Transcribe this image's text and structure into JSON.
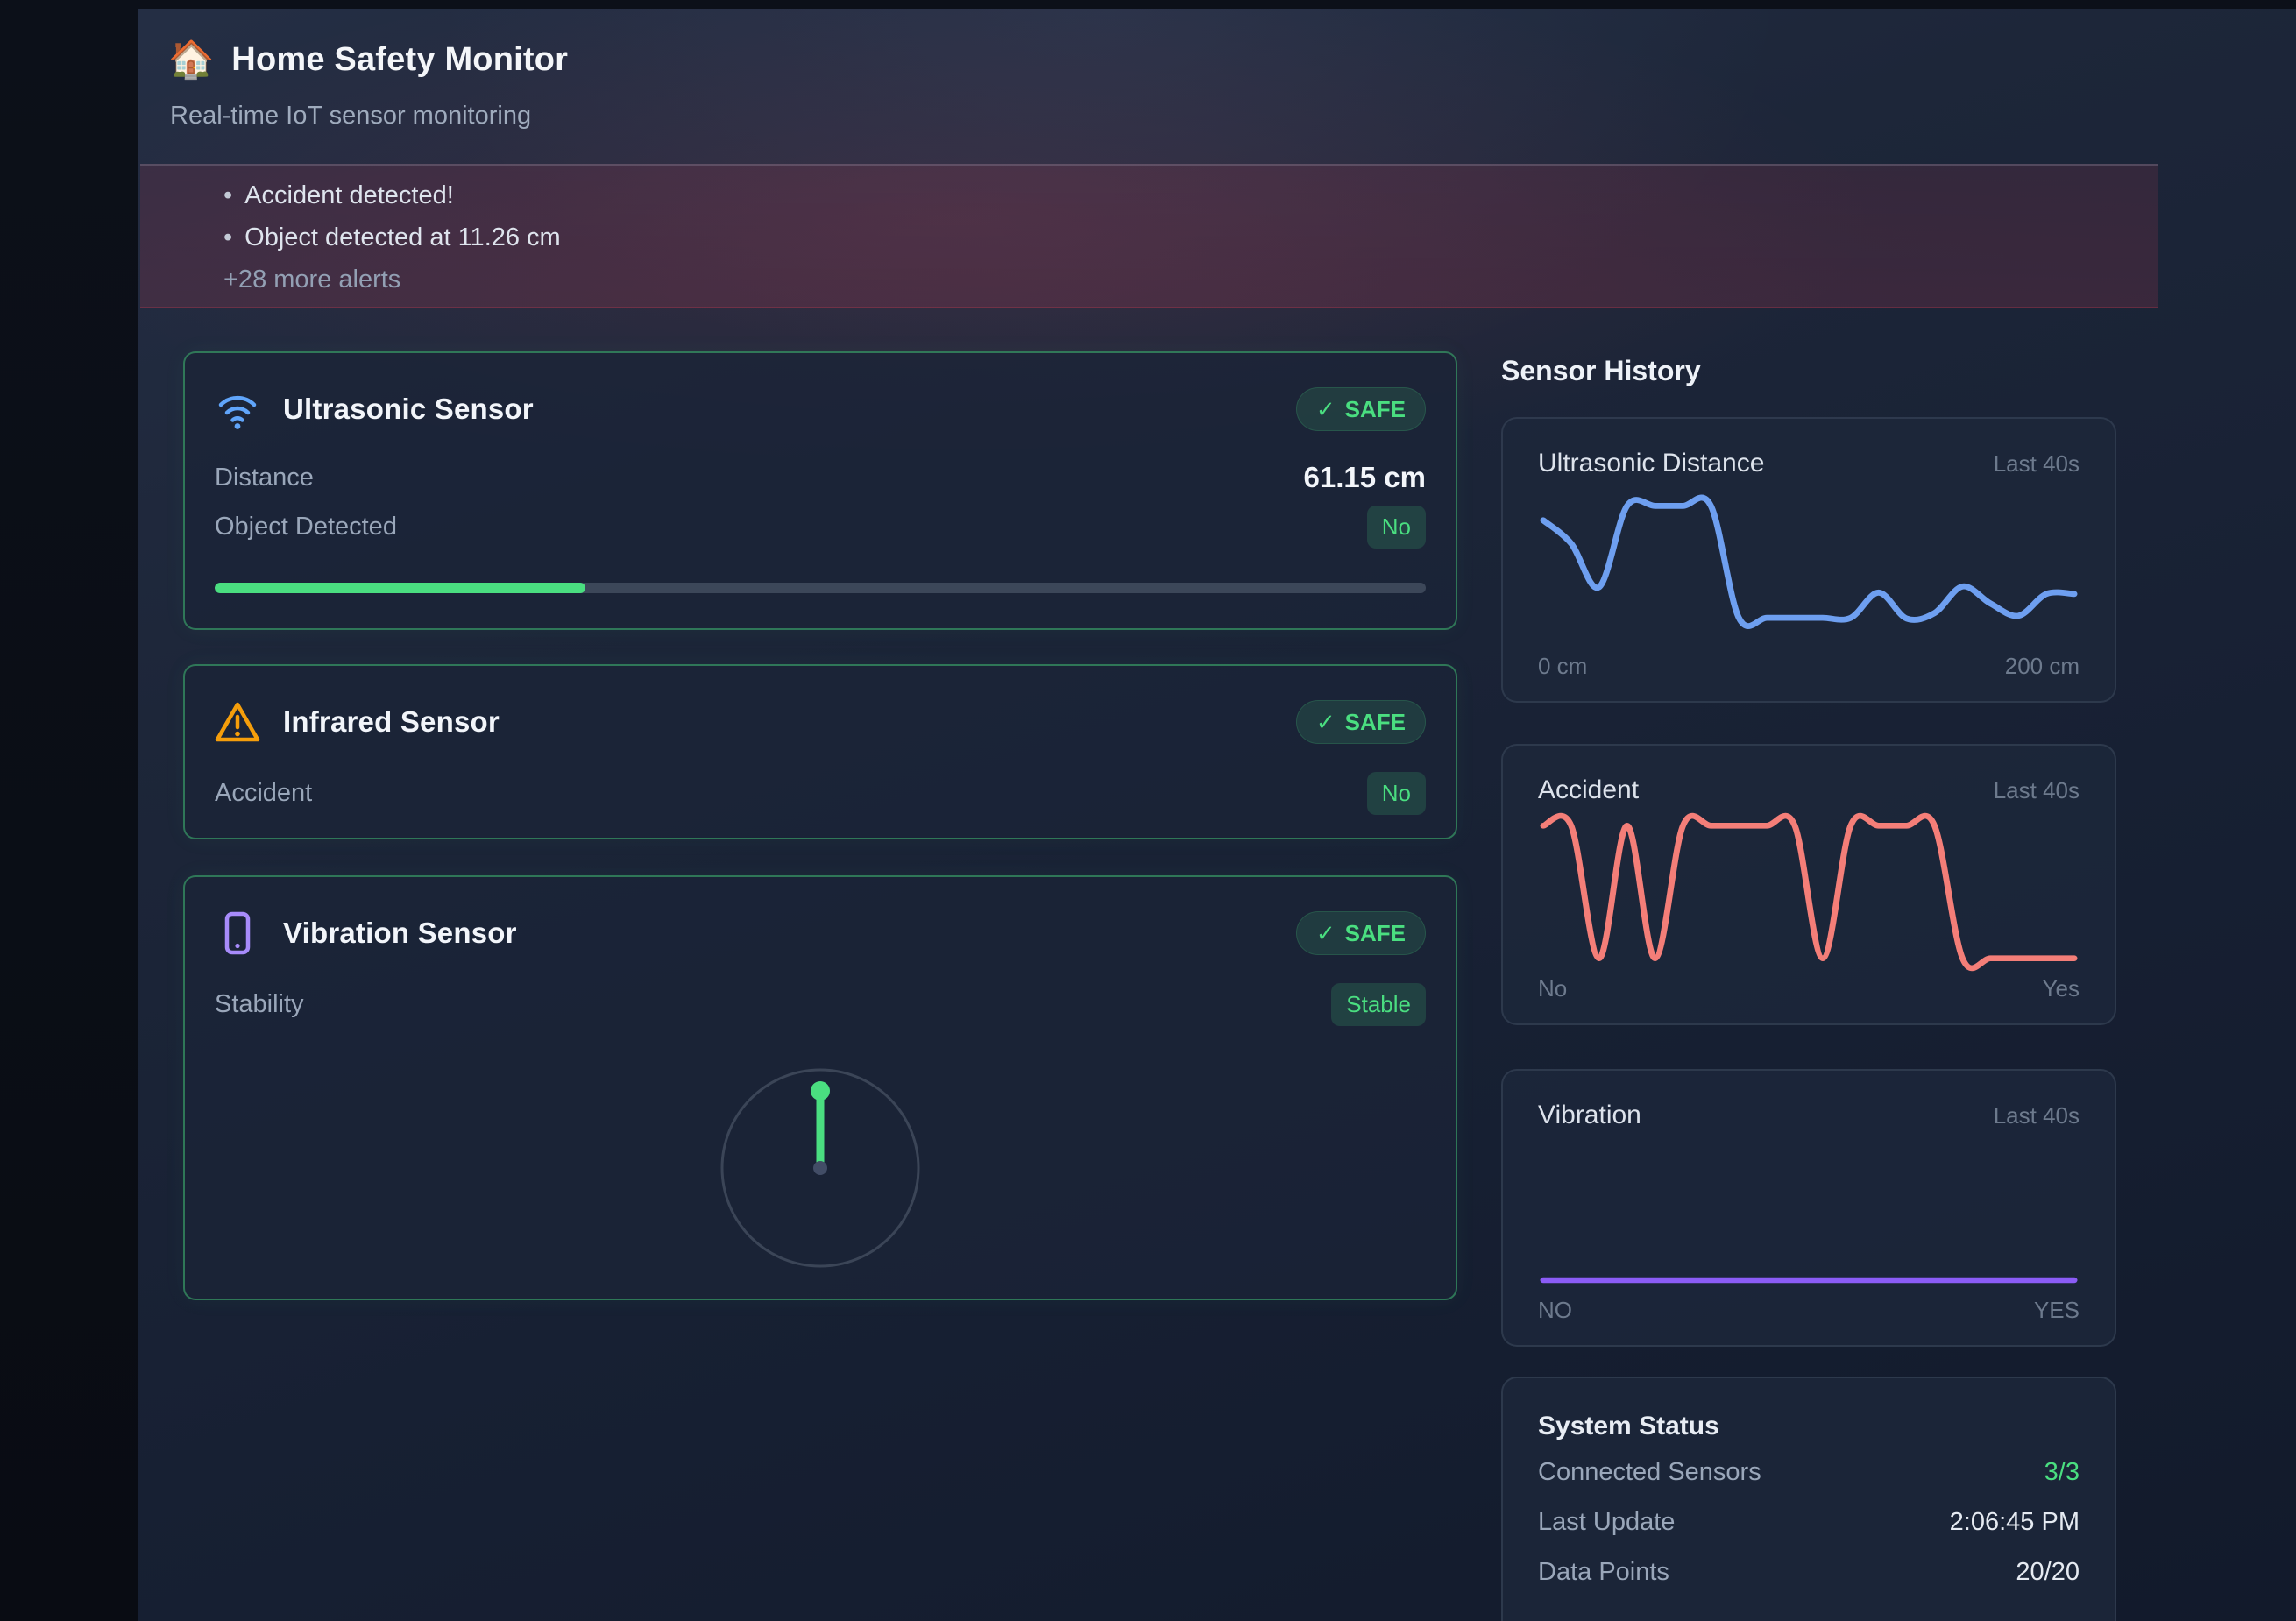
{
  "header": {
    "icon": "🏠",
    "title": "Home Safety Monitor",
    "subtitle": "Real-time IoT sensor monitoring"
  },
  "alert_banner": {
    "bullet": "•",
    "alerts": [
      "Accident detected!",
      "Object detected at 11.26 cm"
    ],
    "more_label": "+28 more alerts"
  },
  "sensor_cards": [
    {
      "title": "Ultrasonic Sensor",
      "icon": "wifi",
      "badge": {
        "check": "✓",
        "label": "SAFE"
      },
      "rows": [
        {
          "label": "Distance",
          "value": "61.15 cm"
        },
        {
          "label": "Object Detected",
          "value": "No"
        }
      ],
      "progress_pct": 30.6
    },
    {
      "title": "Infrared Sensor",
      "icon": "warning-triangle",
      "badge": {
        "check": "✓",
        "label": "SAFE"
      },
      "rows": [
        {
          "label": "Accident",
          "value": "No"
        }
      ]
    },
    {
      "title": "Vibration Sensor",
      "icon": "smartphone",
      "badge": {
        "check": "✓",
        "label": "SAFE"
      },
      "rows": [
        {
          "label": "Stability",
          "value": "Stable"
        }
      ],
      "gauge": {
        "state": "stable",
        "needle_direction": "up",
        "needle_color": "#4ade80"
      }
    }
  ],
  "history": {
    "heading": "Sensor History",
    "charts": [
      {
        "title": "Ultrasonic Distance",
        "range_label": "Last 40s",
        "min_label": "0 cm",
        "max_label": "200 cm",
        "chart_data": {
          "type": "line",
          "color": "#6e9ff0",
          "ymin": 0,
          "ymax": 200,
          "x_window": "Last 40s",
          "values": [
            169,
            135,
            71,
            190,
            190,
            190,
            190,
            26,
            26,
            26,
            26,
            26,
            63,
            25,
            33,
            72,
            47,
            29,
            61,
            61
          ]
        }
      },
      {
        "title": "Accident",
        "range_label": "Last 40s",
        "min_label": "No",
        "max_label": "Yes",
        "chart_data": {
          "type": "line",
          "color": "#f47e78",
          "ymin": 0,
          "ymax": 1,
          "x_window": "Last 40s",
          "values": [
            1,
            1,
            0,
            1,
            0,
            1,
            1,
            1,
            1,
            1,
            0,
            1,
            1,
            1,
            1,
            0,
            0,
            0,
            0,
            0
          ]
        }
      },
      {
        "title": "Vibration",
        "range_label": "Last 40s",
        "min_label": "NO",
        "max_label": "YES",
        "chart_data": {
          "type": "line",
          "color": "#8b5cf6",
          "ymin": 0,
          "ymax": 1,
          "x_window": "Last 40s",
          "values": [
            0,
            0,
            0,
            0,
            0,
            0,
            0,
            0,
            0,
            0,
            0,
            0,
            0,
            0,
            0,
            0,
            0,
            0,
            0,
            0
          ]
        }
      }
    ],
    "system_status": {
      "title": "System Status",
      "rows": [
        {
          "label": "Connected Sensors",
          "value": "3/3"
        },
        {
          "label": "Last Update",
          "value": "2:06:45 PM"
        },
        {
          "label": "Data Points",
          "value": "20/20"
        }
      ]
    }
  },
  "colors": {
    "safe_green": "#4ade80",
    "warn_orange": "#f59e0b",
    "info_blue": "#60a5fa",
    "vibration_purple": "#a78bfa",
    "alert_red": "#c24355"
  }
}
